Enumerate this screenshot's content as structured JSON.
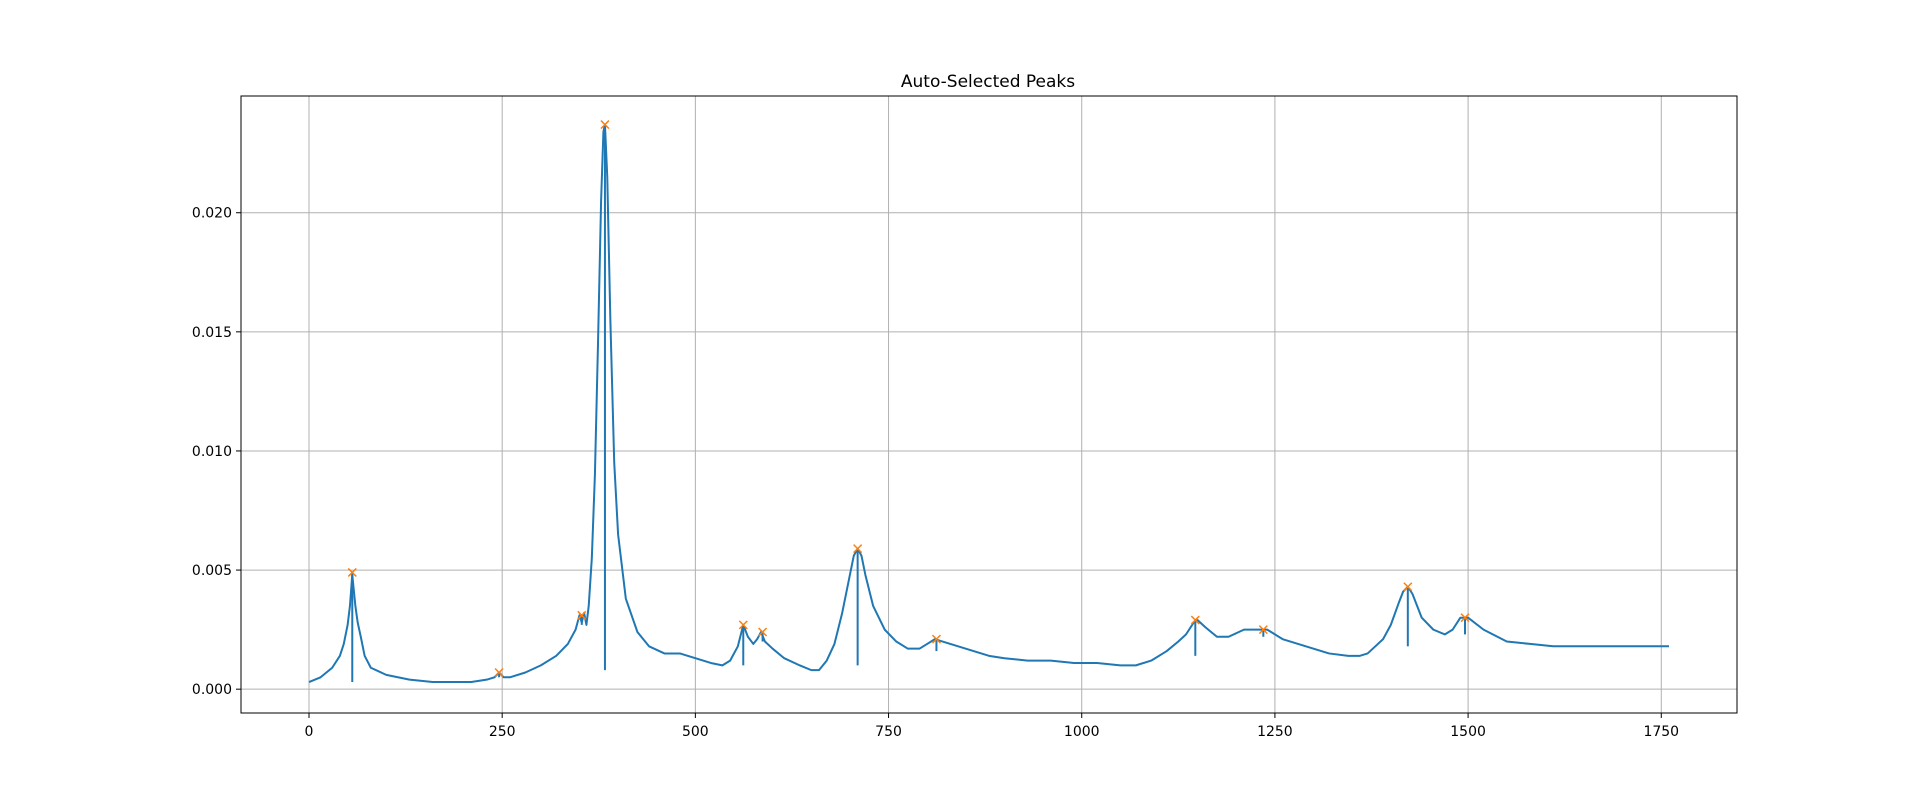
{
  "chart_data": {
    "type": "line",
    "title": "Auto-Selected Peaks",
    "xlabel": "",
    "ylabel": "",
    "xlim": [
      -88,
      1848
    ],
    "ylim": [
      -0.001,
      0.0249
    ],
    "grid": true,
    "x_ticks": [
      0,
      250,
      500,
      750,
      1000,
      1250,
      1500,
      1750
    ],
    "x_tick_labels": [
      "0",
      "250",
      "500",
      "750",
      "1000",
      "1250",
      "1500",
      "1750"
    ],
    "y_ticks": [
      0.0,
      0.005,
      0.01,
      0.015,
      0.02
    ],
    "y_tick_labels": [
      "0.000",
      "0.005",
      "0.010",
      "0.015",
      "0.020"
    ],
    "colors": {
      "line": "#1f77b4",
      "markers": "#ff7f0e",
      "grid": "#b0b0b0"
    },
    "series": [
      {
        "kind": "spectrum",
        "x": [
          0,
          15,
          30,
          40,
          45,
          50,
          53,
          56,
          60,
          63,
          67,
          72,
          80,
          100,
          130,
          160,
          180,
          210,
          230,
          240,
          246,
          252,
          260,
          280,
          300,
          320,
          335,
          345,
          350,
          353,
          356,
          359,
          362,
          366,
          370,
          374,
          378,
          381,
          383,
          386,
          390,
          395,
          400,
          410,
          425,
          440,
          460,
          480,
          500,
          520,
          535,
          545,
          555,
          562,
          568,
          575,
          580,
          585,
          590,
          600,
          615,
          635,
          650,
          660,
          670,
          680,
          690,
          700,
          705,
          710,
          715,
          720,
          730,
          745,
          760,
          775,
          790,
          800,
          810,
          820,
          840,
          860,
          880,
          900,
          930,
          960,
          990,
          1020,
          1050,
          1070,
          1090,
          1110,
          1125,
          1135,
          1145,
          1150,
          1160,
          1175,
          1190,
          1210,
          1230,
          1240,
          1260,
          1290,
          1320,
          1345,
          1360,
          1370,
          1380,
          1390,
          1400,
          1410,
          1416,
          1422,
          1428,
          1440,
          1455,
          1470,
          1480,
          1490,
          1496,
          1500,
          1520,
          1550,
          1580,
          1610,
          1640,
          1680,
          1720,
          1745,
          1760
        ],
        "y": [
          0.0003,
          0.0005,
          0.0009,
          0.0014,
          0.0019,
          0.0027,
          0.0035,
          0.0048,
          0.0035,
          0.0028,
          0.0022,
          0.0014,
          0.0009,
          0.0006,
          0.0004,
          0.0003,
          0.0003,
          0.0003,
          0.0004,
          0.0005,
          0.0007,
          0.0005,
          0.0005,
          0.0007,
          0.001,
          0.0014,
          0.0019,
          0.0025,
          0.0031,
          0.0028,
          0.0032,
          0.0027,
          0.0035,
          0.0055,
          0.009,
          0.0145,
          0.0205,
          0.0234,
          0.0237,
          0.0215,
          0.0155,
          0.0095,
          0.0065,
          0.0038,
          0.0024,
          0.0018,
          0.0015,
          0.0015,
          0.0013,
          0.0011,
          0.001,
          0.0012,
          0.0018,
          0.0027,
          0.0022,
          0.0019,
          0.0021,
          0.0024,
          0.002,
          0.0017,
          0.0013,
          0.001,
          0.0008,
          0.0008,
          0.0012,
          0.0019,
          0.0032,
          0.0048,
          0.0056,
          0.0059,
          0.0056,
          0.0048,
          0.0035,
          0.0025,
          0.002,
          0.0017,
          0.0017,
          0.0019,
          0.0021,
          0.002,
          0.0018,
          0.0016,
          0.0014,
          0.0013,
          0.0012,
          0.0012,
          0.0011,
          0.0011,
          0.001,
          0.001,
          0.0012,
          0.0016,
          0.002,
          0.0023,
          0.0028,
          0.0029,
          0.0026,
          0.0022,
          0.0022,
          0.0025,
          0.0025,
          0.0025,
          0.0021,
          0.0018,
          0.0015,
          0.0014,
          0.0014,
          0.0015,
          0.0018,
          0.0021,
          0.0027,
          0.0036,
          0.0041,
          0.0043,
          0.004,
          0.003,
          0.0025,
          0.0023,
          0.0025,
          0.003,
          0.003,
          0.003,
          0.0025,
          0.002,
          0.0019,
          0.0018,
          0.0018,
          0.0018,
          0.0018,
          0.0018,
          0.0018
        ]
      }
    ],
    "peaks": {
      "x": [
        56,
        246,
        353,
        383,
        562,
        587,
        710,
        812,
        1147,
        1235,
        1422,
        1496
      ],
      "y": [
        0.0049,
        0.0007,
        0.0031,
        0.0237,
        0.0027,
        0.0024,
        0.0059,
        0.0021,
        0.0029,
        0.0025,
        0.0043,
        0.003
      ],
      "stem_base": [
        0.0003,
        0.0005,
        0.0027,
        0.0008,
        0.001,
        0.002,
        0.001,
        0.0016,
        0.0014,
        0.0022,
        0.0018,
        0.0023
      ]
    }
  }
}
